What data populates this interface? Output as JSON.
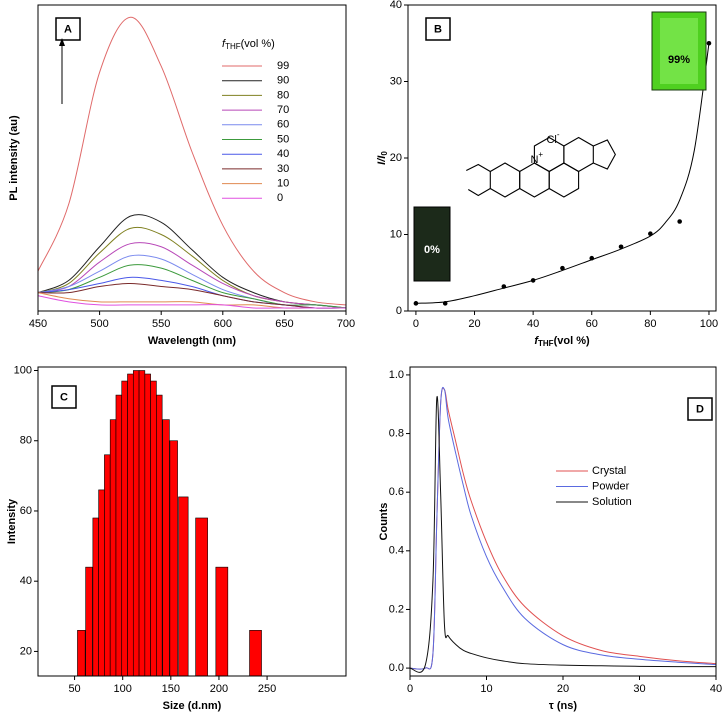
{
  "chart_data": [
    {
      "type": "line",
      "panel": "A",
      "x_label": "Wavelength (nm)",
      "y_label": "PL intensity (au)",
      "legend_title": {
        "symbol": "f",
        "subscript": "THF",
        "text": "(vol %)"
      },
      "legend": "upper right",
      "x": [
        450,
        475,
        500,
        525,
        550,
        575,
        600,
        625,
        650,
        675,
        700
      ],
      "xlim": [
        450,
        700
      ],
      "xticks": [
        450,
        500,
        550,
        600,
        650,
        700
      ],
      "ylim": [
        0,
        100
      ],
      "series": [
        {
          "name": "99",
          "color": "#e06a6a",
          "values": [
            13,
            35,
            78,
            96,
            80,
            52,
            28,
            13,
            6,
            3,
            2
          ]
        },
        {
          "name": "90",
          "color": "#222222",
          "values": [
            6,
            10,
            21,
            31,
            29,
            20,
            11,
            6,
            3,
            2,
            1
          ]
        },
        {
          "name": "80",
          "color": "#7f8020",
          "values": [
            6,
            9,
            19,
            27,
            25,
            18,
            10,
            5,
            3,
            2,
            1
          ]
        },
        {
          "name": "70",
          "color": "#b848b8",
          "values": [
            6,
            8,
            16,
            22,
            21,
            15,
            9,
            5,
            3,
            2,
            1
          ]
        },
        {
          "name": "60",
          "color": "#7a8aee",
          "values": [
            6,
            8,
            13,
            18,
            17,
            12,
            7,
            4,
            2,
            2,
            1
          ]
        },
        {
          "name": "50",
          "color": "#3c9a3c",
          "values": [
            6,
            7,
            11,
            15,
            14,
            10,
            6,
            4,
            2,
            2,
            1
          ]
        },
        {
          "name": "40",
          "color": "#4a58e8",
          "values": [
            6,
            7,
            9,
            11,
            10,
            8,
            5,
            3,
            2,
            1,
            1
          ]
        },
        {
          "name": "30",
          "color": "#7a2a2a",
          "values": [
            6,
            6,
            8,
            9,
            8,
            7,
            5,
            3,
            2,
            1,
            1
          ]
        },
        {
          "name": "10",
          "color": "#e08a50",
          "values": [
            6,
            4,
            3,
            3,
            3,
            3,
            2,
            2,
            1,
            1,
            1
          ]
        },
        {
          "name": "0",
          "color": "#e050e0",
          "values": [
            5,
            3,
            2,
            2,
            2,
            2,
            2,
            1,
            1,
            1,
            1
          ]
        }
      ]
    },
    {
      "type": "scatter",
      "panel": "B",
      "x_label": {
        "symbol": "f",
        "subscript": "THF",
        "text": "(vol %)"
      },
      "y_label": {
        "symbol": "I/I",
        "subscript": "0"
      },
      "x": [
        0,
        10,
        30,
        40,
        50,
        60,
        70,
        80,
        90,
        100
      ],
      "values": [
        1,
        1,
        3.2,
        4,
        5.6,
        6.9,
        8.4,
        10.1,
        11.7,
        35
      ],
      "color": "#000000",
      "fit": {
        "x": [
          0,
          10,
          20,
          30,
          40,
          50,
          60,
          70,
          80,
          85,
          90,
          95,
          100
        ],
        "values": [
          1,
          1.2,
          2,
          3,
          4,
          5.3,
          6.7,
          8.1,
          9.8,
          11.5,
          14.5,
          21,
          35
        ],
        "color": "#000000"
      },
      "xlim": [
        -2.7,
        102.4
      ],
      "xticks": [
        0,
        20,
        40,
        60,
        80,
        100
      ],
      "ylim": [
        0,
        40
      ],
      "yticks": [
        0,
        10,
        20,
        30,
        40
      ],
      "insets": [
        "99%",
        "0%"
      ],
      "structure": {
        "chloride": "Cl",
        "minus": "-",
        "nitrogen": "N",
        "plus": "+"
      }
    },
    {
      "type": "bar",
      "panel": "C",
      "x_label": "Size (d.nm)",
      "y_label": "Intensity",
      "color": "#ff0000",
      "x": [
        57,
        65,
        72,
        78,
        84,
        90,
        96,
        102,
        108,
        114,
        120,
        126,
        132,
        138,
        145,
        153,
        163,
        182,
        203,
        238
      ],
      "values": [
        26,
        44,
        58,
        66,
        76,
        86,
        93,
        97,
        99,
        100,
        100,
        99,
        97,
        93,
        86,
        80,
        64,
        58,
        44,
        26
      ],
      "xlim": [
        12,
        332
      ],
      "xticks": [
        50,
        100,
        150,
        200,
        250
      ],
      "ylim": [
        13,
        101
      ],
      "yticks": [
        20,
        40,
        60,
        80,
        100
      ]
    },
    {
      "type": "line",
      "panel": "D",
      "x_label": "τ (ns)",
      "y_label": "Counts",
      "legend": "center right",
      "x": [
        0,
        2,
        3,
        3.5,
        4,
        4.5,
        5,
        6,
        7,
        8,
        10,
        12,
        15,
        20,
        25,
        30,
        35,
        40
      ],
      "xlim": [
        0,
        40
      ],
      "xticks": [
        0,
        10,
        20,
        30,
        40
      ],
      "ylim": [
        -0.027,
        1.027
      ],
      "yticks": [
        {
          "value": 0,
          "label": "0.0"
        },
        0.2,
        0.4,
        0.6,
        0.8,
        {
          "value": 1,
          "label": "1.0"
        }
      ],
      "series": [
        {
          "name": "Crystal",
          "color": "#e05050",
          "values": [
            0,
            0,
            0.05,
            0.5,
            0.9,
            0.95,
            0.88,
            0.77,
            0.66,
            0.57,
            0.43,
            0.32,
            0.21,
            0.11,
            0.06,
            0.04,
            0.025,
            0.015
          ]
        },
        {
          "name": "Powder",
          "color": "#5a6ae0",
          "values": [
            0,
            0,
            0.05,
            0.5,
            0.9,
            0.95,
            0.85,
            0.73,
            0.62,
            0.52,
            0.38,
            0.28,
            0.17,
            0.08,
            0.045,
            0.03,
            0.02,
            0.012
          ]
        },
        {
          "name": "Solution",
          "color": "#111111",
          "values": [
            0,
            0.01,
            0.3,
            0.92,
            0.6,
            0.15,
            0.11,
            0.08,
            0.06,
            0.05,
            0.035,
            0.025,
            0.015,
            0.01,
            0.008,
            0.006,
            0.005,
            0.005
          ]
        }
      ]
    }
  ]
}
